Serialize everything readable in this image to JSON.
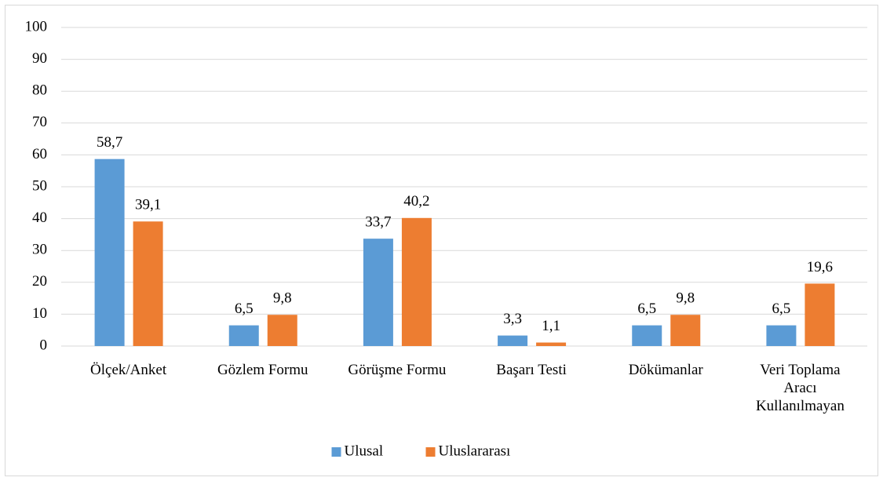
{
  "chart_data": {
    "type": "bar",
    "categories": [
      "Ölçek/Anket",
      "Gözlem Formu",
      "Görüşme Formu",
      "Başarı Testi",
      "Dökümanlar",
      "Veri Toplama Aracı Kullanılmayan"
    ],
    "series": [
      {
        "name": "Ulusal",
        "color": "#5b9bd5",
        "values": [
          58.7,
          6.5,
          33.7,
          3.3,
          6.5,
          6.5
        ],
        "value_labels": [
          "58,7",
          "6,5",
          "33,7",
          "3,3",
          "6,5",
          "6,5"
        ]
      },
      {
        "name": "Uluslararası",
        "color": "#ed7d31",
        "values": [
          39.1,
          9.8,
          40.2,
          1.1,
          9.8,
          19.6
        ],
        "value_labels": [
          "39,1",
          "9,8",
          "40,2",
          "1,1",
          "9,8",
          "19,6"
        ]
      }
    ],
    "ylim": [
      0,
      100
    ],
    "yticks": [
      0,
      10,
      20,
      30,
      40,
      50,
      60,
      70,
      80,
      90,
      100
    ],
    "grid": true,
    "legend": "bottom"
  }
}
